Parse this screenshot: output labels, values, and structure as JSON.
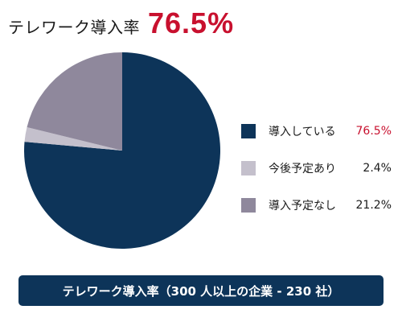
{
  "header": {
    "label": "テレワーク導入率",
    "value": "76.5%"
  },
  "colors": {
    "accent": "#c8102e",
    "primary": "#0d3459",
    "text": "#1a1a1a",
    "caption_bg": "#0d3459",
    "caption_text": "#ffffff"
  },
  "chart_data": {
    "type": "pie",
    "title": "テレワーク導入率",
    "series": [
      {
        "label": "導入している",
        "value": 76.5,
        "display": "76.5%",
        "color": "#0d3459",
        "value_color": "#c8102e"
      },
      {
        "label": "今後予定あり",
        "value": 2.4,
        "display": "2.4%",
        "color": "#c4c0cc",
        "value_color": "#1a1a1a"
      },
      {
        "label": "導入予定なし",
        "value": 21.2,
        "display": "21.2%",
        "color": "#8f889c",
        "value_color": "#1a1a1a"
      }
    ],
    "legend_position": "right",
    "start_angle": "12 o'clock",
    "direction": "clockwise"
  },
  "caption": "テレワーク導入率（300 人以上の企業 - 230 社）"
}
